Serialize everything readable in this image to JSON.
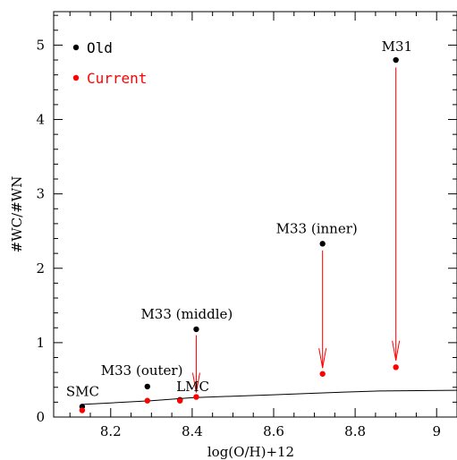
{
  "chart_data": {
    "type": "scatter",
    "xlabel": "log(O/H)+12",
    "ylabel": "#WC/#WN",
    "xlim": [
      8.06,
      9.05
    ],
    "ylim": [
      0,
      5.45
    ],
    "x_ticks": [
      "8.2",
      "8.4",
      "8.6",
      "8.8",
      "9"
    ],
    "y_ticks": [
      "0",
      "1",
      "2",
      "3",
      "4",
      "5"
    ],
    "colors": {
      "old": "#000000",
      "current": "#ff0000"
    },
    "legend_position": "top-left",
    "series": [
      {
        "name": "Old",
        "color": "#000000",
        "points": [
          {
            "label": "SMC",
            "x": 8.13,
            "y": 0.14
          },
          {
            "label": "M33 (outer)",
            "x": 8.29,
            "y": 0.41
          },
          {
            "label": "LMC",
            "x": 8.37,
            "y": 0.23
          },
          {
            "label": "M33 (middle)",
            "x": 8.41,
            "y": 1.18
          },
          {
            "label": "M33 (inner)",
            "x": 8.72,
            "y": 2.33
          },
          {
            "label": "M31",
            "x": 8.9,
            "y": 4.8
          }
        ]
      },
      {
        "name": "Current",
        "color": "#ff0000",
        "points": [
          {
            "x": 8.13,
            "y": 0.09
          },
          {
            "x": 8.29,
            "y": 0.22
          },
          {
            "x": 8.37,
            "y": 0.22
          },
          {
            "x": 8.41,
            "y": 0.27
          },
          {
            "x": 8.72,
            "y": 0.58
          },
          {
            "x": 8.9,
            "y": 0.67
          }
        ]
      }
    ],
    "arrows": [
      {
        "x": 8.41,
        "from": 1.1,
        "to": 0.33
      },
      {
        "x": 8.72,
        "from": 2.24,
        "to": 0.66
      },
      {
        "x": 8.9,
        "from": 4.7,
        "to": 0.76
      }
    ],
    "model_curve": {
      "x": [
        8.13,
        8.2,
        8.3,
        8.4,
        8.5,
        8.6,
        8.7,
        8.8,
        8.86,
        9.05
      ],
      "y": [
        0.17,
        0.19,
        0.22,
        0.26,
        0.28,
        0.3,
        0.32,
        0.34,
        0.35,
        0.36
      ]
    }
  }
}
